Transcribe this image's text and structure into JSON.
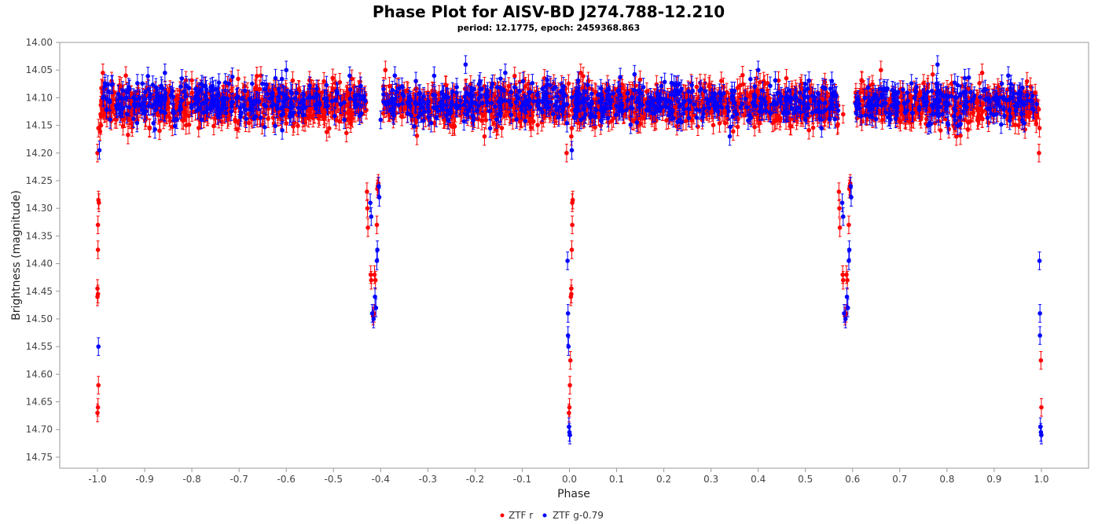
{
  "chart_data": {
    "type": "scatter",
    "title": "Phase Plot for AISV-BD J274.788-12.210",
    "subtitle": "period: 12.1775, epoch: 2459368.863",
    "xlabel": "Phase",
    "ylabel": "Brightness (magnitude)",
    "xlim": [
      -1.08,
      1.1
    ],
    "ylim": [
      14.0,
      14.77
    ],
    "y_inverted": true,
    "x_ticks": [
      "-1.0",
      "-0.9",
      "-0.8",
      "-0.7",
      "-0.6",
      "-0.5",
      "-0.4",
      "-0.3",
      "-0.2",
      "-0.1",
      "0.0",
      "0.1",
      "0.2",
      "0.3",
      "0.4",
      "0.5",
      "0.6",
      "0.7",
      "0.8",
      "0.9",
      "1.0"
    ],
    "y_ticks": [
      "14.00",
      "14.05",
      "14.10",
      "14.15",
      "14.20",
      "14.25",
      "14.30",
      "14.35",
      "14.40",
      "14.45",
      "14.50",
      "14.55",
      "14.60",
      "14.65",
      "14.70",
      "14.75"
    ],
    "grid": false,
    "legend_position": "bottom-center",
    "error_bar": 0.016,
    "series": [
      {
        "name": "ZTF r",
        "color": "#ff0000",
        "baseline": 14.112,
        "baseline_scatter": 0.018,
        "baseline_segments": [
          [
            -0.995,
            -0.43
          ],
          [
            -0.395,
            0.0
          ],
          [
            0.005,
            0.57
          ],
          [
            0.605,
            0.995
          ]
        ],
        "baseline_points": [
          [
            -0.97,
            14.07
          ],
          [
            -0.94,
            14.06
          ],
          [
            -0.91,
            14.12
          ],
          [
            -0.86,
            14.14
          ],
          [
            -0.8,
            14.1
          ],
          [
            -0.75,
            14.11
          ],
          [
            -0.68,
            14.13
          ],
          [
            -0.6,
            14.09
          ],
          [
            -0.55,
            14.12
          ],
          [
            -0.48,
            14.11
          ],
          [
            -0.44,
            14.13
          ],
          [
            -0.39,
            14.05
          ],
          [
            -0.31,
            14.14
          ],
          [
            -0.22,
            14.12
          ],
          [
            -0.18,
            14.17
          ],
          [
            -0.1,
            14.1
          ],
          [
            -0.03,
            14.13
          ],
          [
            0.04,
            14.07
          ],
          [
            0.12,
            14.12
          ],
          [
            0.21,
            14.14
          ],
          [
            0.3,
            14.1
          ],
          [
            0.42,
            14.12
          ],
          [
            0.5,
            14.11
          ],
          [
            0.58,
            14.13
          ],
          [
            0.62,
            14.07
          ],
          [
            0.66,
            14.05
          ],
          [
            0.74,
            14.12
          ],
          [
            0.82,
            14.17
          ],
          [
            0.9,
            14.1
          ],
          [
            0.97,
            14.12
          ]
        ],
        "eclipse_points": [
          [
            -1.0,
            14.2
          ],
          [
            -0.998,
            14.155
          ],
          [
            -0.997,
            14.29
          ],
          [
            -0.998,
            14.285
          ],
          [
            -0.999,
            14.33
          ],
          [
            -0.999,
            14.375
          ],
          [
            -1.0,
            14.445
          ],
          [
            -1.0,
            14.46
          ],
          [
            -0.999,
            14.455
          ],
          [
            -0.998,
            14.62
          ],
          [
            -0.999,
            14.66
          ],
          [
            -1.0,
            14.67
          ],
          [
            -0.429,
            14.27
          ],
          [
            -0.428,
            14.3
          ],
          [
            -0.427,
            14.335
          ],
          [
            -0.421,
            14.42
          ],
          [
            -0.42,
            14.43
          ],
          [
            -0.416,
            14.495
          ],
          [
            -0.414,
            14.49
          ],
          [
            -0.413,
            14.42
          ],
          [
            -0.411,
            14.43
          ],
          [
            -0.408,
            14.33
          ],
          [
            -0.406,
            14.26
          ],
          [
            -0.405,
            14.255
          ],
          [
            -0.407,
            14.265
          ],
          [
            -0.006,
            14.2
          ],
          [
            0.001,
            14.62
          ],
          [
            0.0,
            14.66
          ],
          [
            -0.001,
            14.67
          ],
          [
            0.002,
            14.575
          ],
          [
            0.003,
            14.46
          ],
          [
            0.004,
            14.455
          ],
          [
            0.004,
            14.445
          ],
          [
            0.005,
            14.375
          ],
          [
            0.006,
            14.33
          ],
          [
            0.006,
            14.29
          ],
          [
            0.007,
            14.285
          ],
          [
            0.005,
            14.155
          ],
          [
            0.004,
            14.17
          ],
          [
            0.571,
            14.27
          ],
          [
            0.572,
            14.3
          ],
          [
            0.573,
            14.335
          ],
          [
            0.579,
            14.42
          ],
          [
            0.58,
            14.43
          ],
          [
            0.584,
            14.495
          ],
          [
            0.586,
            14.49
          ],
          [
            0.587,
            14.42
          ],
          [
            0.589,
            14.43
          ],
          [
            0.592,
            14.33
          ],
          [
            0.594,
            14.26
          ],
          [
            0.595,
            14.255
          ],
          [
            0.593,
            14.265
          ],
          [
            0.995,
            14.2
          ],
          [
            0.996,
            14.155
          ],
          [
            0.999,
            14.575
          ],
          [
            1.0,
            14.66
          ]
        ]
      },
      {
        "name": "ZTF g-0.79",
        "color": "#0000ff",
        "baseline": 14.108,
        "baseline_scatter": 0.018,
        "baseline_segments": [
          [
            -0.99,
            -0.43
          ],
          [
            -0.395,
            -0.005
          ],
          [
            0.005,
            0.57
          ],
          [
            0.605,
            0.99
          ]
        ],
        "baseline_points": [
          [
            -0.6,
            14.05
          ],
          [
            -0.4,
            14.14
          ],
          [
            -0.37,
            14.06
          ],
          [
            -0.27,
            14.09
          ],
          [
            -0.22,
            14.04
          ],
          [
            -0.15,
            14.13
          ],
          [
            -0.05,
            14.08
          ],
          [
            0.07,
            14.12
          ],
          [
            0.4,
            14.05
          ],
          [
            0.47,
            14.1
          ],
          [
            0.55,
            14.12
          ],
          [
            0.78,
            14.04
          ],
          [
            0.85,
            14.09
          ],
          [
            0.93,
            14.06
          ]
        ],
        "eclipse_points": [
          [
            -0.996,
            14.195
          ],
          [
            -0.998,
            14.55
          ],
          [
            -0.422,
            14.29
          ],
          [
            -0.42,
            14.315
          ],
          [
            -0.418,
            14.49
          ],
          [
            -0.415,
            14.5
          ],
          [
            -0.412,
            14.46
          ],
          [
            -0.41,
            14.48
          ],
          [
            -0.408,
            14.395
          ],
          [
            -0.407,
            14.375
          ],
          [
            -0.403,
            14.28
          ],
          [
            -0.404,
            14.26
          ],
          [
            -0.004,
            14.395
          ],
          [
            -0.003,
            14.49
          ],
          [
            -0.003,
            14.53
          ],
          [
            -0.002,
            14.55
          ],
          [
            -0.001,
            14.695
          ],
          [
            0.0,
            14.705
          ],
          [
            0.001,
            14.71
          ],
          [
            0.005,
            14.195
          ],
          [
            0.578,
            14.29
          ],
          [
            0.58,
            14.315
          ],
          [
            0.582,
            14.49
          ],
          [
            0.585,
            14.5
          ],
          [
            0.588,
            14.46
          ],
          [
            0.59,
            14.48
          ],
          [
            0.592,
            14.395
          ],
          [
            0.593,
            14.375
          ],
          [
            0.597,
            14.28
          ],
          [
            0.596,
            14.26
          ],
          [
            0.996,
            14.395
          ],
          [
            0.997,
            14.49
          ],
          [
            0.997,
            14.53
          ],
          [
            0.998,
            14.695
          ],
          [
            0.999,
            14.705
          ],
          [
            1.0,
            14.71
          ]
        ]
      }
    ]
  }
}
